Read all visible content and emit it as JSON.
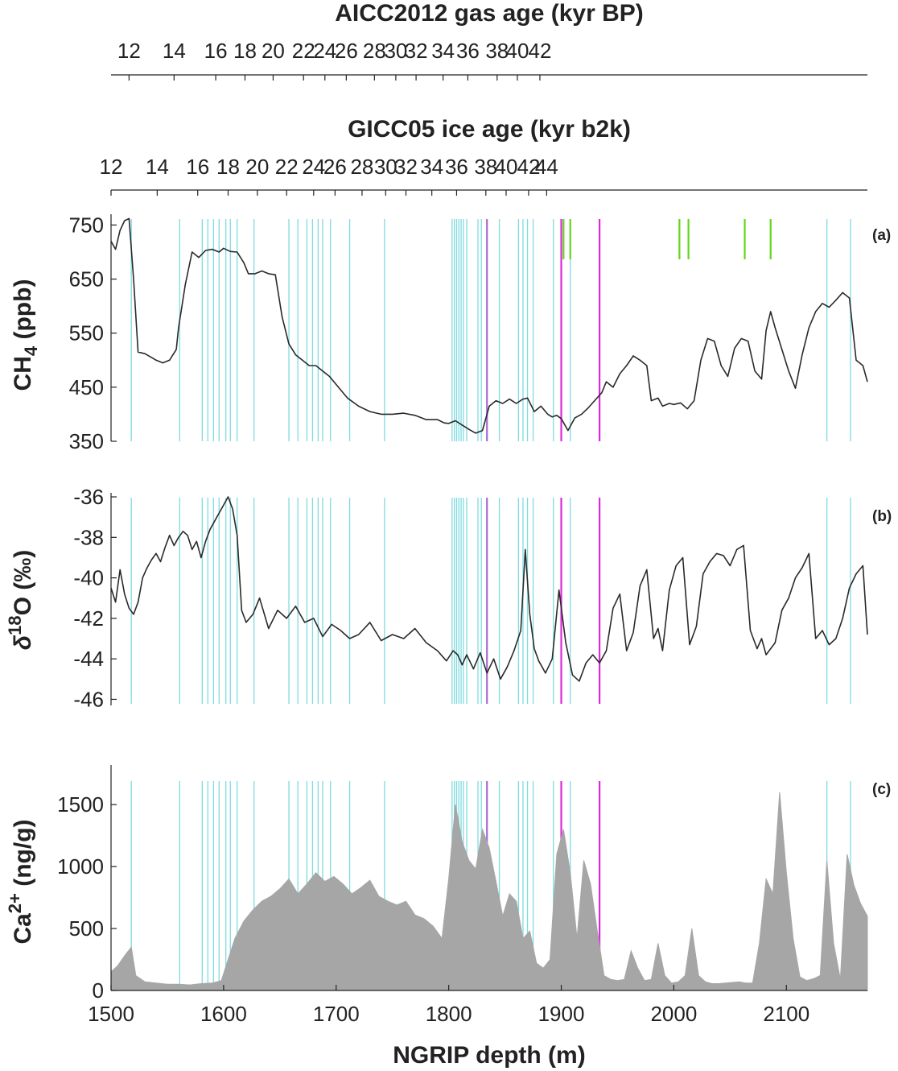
{
  "figure": {
    "top_axis_1": {
      "title": "AICC2012 gas age (kyr BP)",
      "ticks": [
        {
          "label": "12",
          "depth": 1516
        },
        {
          "label": "14",
          "depth": 1556
        },
        {
          "label": "16",
          "depth": 1593
        },
        {
          "label": "18",
          "depth": 1619
        },
        {
          "label": "20",
          "depth": 1644
        },
        {
          "label": "22",
          "depth": 1671
        },
        {
          "label": "24",
          "depth": 1690
        },
        {
          "label": "26",
          "depth": 1709
        },
        {
          "label": "28",
          "depth": 1734
        },
        {
          "label": "30",
          "depth": 1753
        },
        {
          "label": "32",
          "depth": 1771
        },
        {
          "label": "34",
          "depth": 1795
        },
        {
          "label": "36",
          "depth": 1817
        },
        {
          "label": "38",
          "depth": 1843
        },
        {
          "label": "40",
          "depth": 1861
        },
        {
          "label": "42",
          "depth": 1881
        }
      ]
    },
    "top_axis_2": {
      "title": "GICC05 ice age (kyr b2k)",
      "ticks": [
        {
          "label": "12",
          "depth": 1500
        },
        {
          "label": "14",
          "depth": 1541
        },
        {
          "label": "16",
          "depth": 1577
        },
        {
          "label": "18",
          "depth": 1604
        },
        {
          "label": "20",
          "depth": 1630
        },
        {
          "label": "22",
          "depth": 1656
        },
        {
          "label": "24",
          "depth": 1680
        },
        {
          "label": "26",
          "depth": 1699
        },
        {
          "label": "28",
          "depth": 1723
        },
        {
          "label": "30",
          "depth": 1744
        },
        {
          "label": "32",
          "depth": 1762
        },
        {
          "label": "34",
          "depth": 1785
        },
        {
          "label": "36",
          "depth": 1807
        },
        {
          "label": "38",
          "depth": 1833
        },
        {
          "label": "40",
          "depth": 1851
        },
        {
          "label": "42",
          "depth": 1871
        },
        {
          "label": "44",
          "depth": 1887
        }
      ]
    }
  },
  "chart_data": [
    {
      "type": "line",
      "panel_label": "(a)",
      "ylabel_main": "CH",
      "ylabel_sub": "4",
      "ylabel_tail": " (ppb)",
      "ylim": [
        350,
        770
      ],
      "yticks": [
        "750",
        "650",
        "550",
        "450",
        "350"
      ],
      "ytick_values": [
        750,
        650,
        550,
        450,
        350
      ],
      "line_color": "#2a2a2a",
      "x": [
        1500,
        1504,
        1508,
        1512,
        1516,
        1520,
        1524,
        1530,
        1536,
        1540,
        1546,
        1552,
        1558,
        1560,
        1566,
        1572,
        1578,
        1584,
        1590,
        1596,
        1600,
        1606,
        1612,
        1618,
        1622,
        1628,
        1634,
        1640,
        1646,
        1652,
        1658,
        1664,
        1670,
        1676,
        1682,
        1688,
        1694,
        1700,
        1710,
        1720,
        1730,
        1740,
        1750,
        1760,
        1770,
        1780,
        1790,
        1796,
        1800,
        1806,
        1812,
        1818,
        1824,
        1830,
        1836,
        1842,
        1848,
        1854,
        1860,
        1866,
        1870,
        1876,
        1882,
        1888,
        1892,
        1896,
        1900,
        1906,
        1912,
        1918,
        1924,
        1930,
        1936,
        1940,
        1946,
        1952,
        1958,
        1964,
        1970,
        1976,
        1980,
        1986,
        1990,
        1996,
        2000,
        2006,
        2012,
        2018,
        2024,
        2030,
        2036,
        2042,
        2048,
        2054,
        2060,
        2066,
        2072,
        2078,
        2082,
        2086,
        2090,
        2096,
        2102,
        2108,
        2114,
        2120,
        2126,
        2132,
        2138,
        2144,
        2150,
        2156,
        2162,
        2168,
        2172
      ],
      "values": [
        720,
        705,
        740,
        758,
        762,
        650,
        515,
        512,
        505,
        500,
        495,
        500,
        520,
        560,
        640,
        700,
        690,
        703,
        705,
        700,
        707,
        701,
        700,
        680,
        660,
        660,
        665,
        660,
        658,
        580,
        530,
        510,
        500,
        490,
        490,
        480,
        470,
        455,
        430,
        415,
        405,
        400,
        400,
        402,
        398,
        390,
        390,
        384,
        383,
        388,
        380,
        372,
        365,
        370,
        415,
        425,
        420,
        428,
        420,
        428,
        430,
        405,
        415,
        400,
        395,
        398,
        392,
        370,
        393,
        400,
        412,
        426,
        440,
        460,
        450,
        475,
        490,
        508,
        500,
        490,
        425,
        430,
        415,
        420,
        418,
        421,
        410,
        425,
        500,
        540,
        535,
        490,
        470,
        522,
        540,
        535,
        480,
        465,
        555,
        590,
        560,
        520,
        480,
        448,
        510,
        560,
        590,
        605,
        598,
        611,
        625,
        615,
        500,
        490,
        460
      ]
    },
    {
      "type": "line",
      "panel_label": "(b)",
      "ylabel_main": "δ",
      "ylabel_sup": "18",
      "ylabel_tail": "O   (‰)",
      "ylim": [
        -46.3,
        -35.8
      ],
      "yticks": [
        "-36",
        "-38",
        "-40",
        "-42",
        "-44",
        "-46"
      ],
      "ytick_values": [
        -36,
        -38,
        -40,
        -42,
        -44,
        -46
      ],
      "line_color": "#2a2a2a",
      "x": [
        1500,
        1504,
        1508,
        1512,
        1516,
        1520,
        1524,
        1528,
        1532,
        1536,
        1540,
        1544,
        1548,
        1552,
        1556,
        1560,
        1564,
        1568,
        1572,
        1576,
        1580,
        1584,
        1588,
        1592,
        1596,
        1600,
        1604,
        1608,
        1612,
        1616,
        1620,
        1626,
        1632,
        1640,
        1648,
        1656,
        1664,
        1672,
        1680,
        1688,
        1696,
        1704,
        1712,
        1720,
        1730,
        1740,
        1750,
        1760,
        1770,
        1780,
        1790,
        1798,
        1804,
        1808,
        1812,
        1816,
        1822,
        1828,
        1834,
        1840,
        1846,
        1852,
        1858,
        1864,
        1868,
        1872,
        1876,
        1880,
        1886,
        1892,
        1898,
        1904,
        1910,
        1916,
        1922,
        1928,
        1934,
        1940,
        1946,
        1952,
        1958,
        1964,
        1970,
        1976,
        1982,
        1986,
        1990,
        1996,
        2002,
        2008,
        2014,
        2020,
        2026,
        2032,
        2038,
        2044,
        2050,
        2056,
        2062,
        2068,
        2074,
        2078,
        2082,
        2086,
        2090,
        2096,
        2102,
        2108,
        2114,
        2120,
        2126,
        2132,
        2138,
        2144,
        2150,
        2156,
        2162,
        2168,
        2172
      ],
      "values": [
        -40.5,
        -41.2,
        -39.6,
        -40.8,
        -41.5,
        -41.8,
        -41.2,
        -40.0,
        -39.5,
        -39.1,
        -38.8,
        -39.2,
        -38.5,
        -37.9,
        -38.4,
        -38.0,
        -37.7,
        -37.9,
        -38.6,
        -38.2,
        -39.0,
        -38.2,
        -37.6,
        -37.2,
        -36.8,
        -36.4,
        -36.0,
        -36.6,
        -37.9,
        -41.6,
        -42.2,
        -41.8,
        -41.0,
        -42.5,
        -41.6,
        -42.0,
        -41.4,
        -42.2,
        -42.0,
        -42.9,
        -42.3,
        -42.6,
        -43.0,
        -42.8,
        -42.2,
        -43.1,
        -42.8,
        -43.0,
        -42.5,
        -43.2,
        -43.6,
        -44.1,
        -43.6,
        -43.8,
        -44.3,
        -43.8,
        -44.5,
        -43.7,
        -44.7,
        -44.0,
        -45.0,
        -44.4,
        -43.6,
        -42.6,
        -38.6,
        -41.8,
        -43.5,
        -44.1,
        -44.7,
        -44.0,
        -40.6,
        -43.2,
        -44.8,
        -45.1,
        -44.2,
        -43.8,
        -44.2,
        -43.6,
        -41.5,
        -40.8,
        -43.6,
        -42.7,
        -40.4,
        -39.6,
        -43.0,
        -42.5,
        -43.6,
        -40.6,
        -39.4,
        -39.0,
        -43.3,
        -42.4,
        -39.8,
        -39.2,
        -38.8,
        -38.9,
        -39.4,
        -38.6,
        -38.4,
        -42.6,
        -43.5,
        -43.0,
        -43.8,
        -43.5,
        -43.2,
        -41.6,
        -41.0,
        -40.0,
        -39.5,
        -38.8,
        -43.0,
        -42.6,
        -43.3,
        -43.0,
        -42.0,
        -40.5,
        -39.8,
        -39.4,
        -42.8
      ]
    },
    {
      "type": "area",
      "panel_label": "(c)",
      "ylabel_main": "Ca",
      "ylabel_sup": "2+",
      "ylabel_tail": " (ng/g)",
      "ylim": [
        0,
        1820
      ],
      "yticks": [
        "1500",
        "1000",
        "500",
        "0"
      ],
      "ytick_values": [
        1500,
        1000,
        500,
        0
      ],
      "fill_color": "#a6a6a6",
      "x": [
        1500,
        1506,
        1512,
        1518,
        1522,
        1530,
        1540,
        1550,
        1560,
        1570,
        1580,
        1590,
        1598,
        1604,
        1610,
        1618,
        1626,
        1634,
        1642,
        1650,
        1658,
        1666,
        1674,
        1682,
        1690,
        1698,
        1706,
        1714,
        1722,
        1730,
        1738,
        1746,
        1754,
        1762,
        1770,
        1778,
        1786,
        1794,
        1800,
        1806,
        1812,
        1818,
        1824,
        1830,
        1836,
        1842,
        1848,
        1854,
        1860,
        1866,
        1872,
        1878,
        1884,
        1890,
        1896,
        1902,
        1908,
        1914,
        1920,
        1926,
        1932,
        1938,
        1944,
        1950,
        1956,
        1962,
        1968,
        1974,
        1980,
        1986,
        1992,
        1998,
        2004,
        2010,
        2016,
        2022,
        2028,
        2034,
        2040,
        2046,
        2052,
        2058,
        2064,
        2070,
        2076,
        2082,
        2088,
        2094,
        2100,
        2106,
        2112,
        2118,
        2124,
        2130,
        2136,
        2142,
        2148,
        2154,
        2160,
        2166,
        2172
      ],
      "values": [
        150,
        200,
        280,
        350,
        120,
        70,
        60,
        50,
        50,
        45,
        55,
        60,
        80,
        250,
        420,
        560,
        650,
        720,
        760,
        820,
        900,
        780,
        860,
        950,
        880,
        920,
        860,
        780,
        830,
        890,
        760,
        720,
        690,
        720,
        610,
        580,
        520,
        420,
        900,
        1500,
        1200,
        1050,
        980,
        1300,
        1150,
        880,
        600,
        780,
        720,
        420,
        480,
        220,
        180,
        250,
        1100,
        1300,
        950,
        420,
        1050,
        860,
        480,
        120,
        90,
        80,
        90,
        320,
        180,
        80,
        90,
        380,
        120,
        60,
        70,
        120,
        500,
        120,
        70,
        55,
        55,
        60,
        65,
        70,
        60,
        60,
        380,
        900,
        780,
        1600,
        950,
        420,
        110,
        80,
        95,
        120,
        1050,
        380,
        90,
        1100,
        850,
        700,
        600
      ]
    },
    {
      "type": "line",
      "role": "shared depth axis",
      "xlabel": "NGRIP depth (m)",
      "xlim": [
        1500,
        2172
      ],
      "xticks": [
        "1500",
        "1600",
        "1700",
        "1800",
        "1900",
        "2000",
        "2100"
      ],
      "xtick_values": [
        1500,
        1600,
        1700,
        1800,
        1900,
        2000,
        2100
      ]
    }
  ],
  "markers": {
    "cyan": {
      "color": "#7fdbe0",
      "depths": [
        1518,
        1561,
        1581,
        1586,
        1591,
        1596,
        1602,
        1606,
        1612,
        1627,
        1658,
        1666,
        1674,
        1679,
        1684,
        1688,
        1695,
        1712,
        1743,
        1803,
        1805,
        1807,
        1809,
        1811,
        1813,
        1816,
        1826,
        1829,
        1845,
        1862,
        1866,
        1870,
        1875,
        1893,
        1908,
        2136,
        2157
      ]
    },
    "purple": {
      "color": "#a46ed6",
      "depths": [
        1834
      ]
    },
    "magenta": {
      "color": "#dc2adb",
      "depths": [
        1900,
        1934
      ]
    },
    "green": {
      "color": "#62d61c",
      "depths": [
        1902,
        1908,
        2005,
        2013,
        2063,
        2086
      ]
    }
  }
}
